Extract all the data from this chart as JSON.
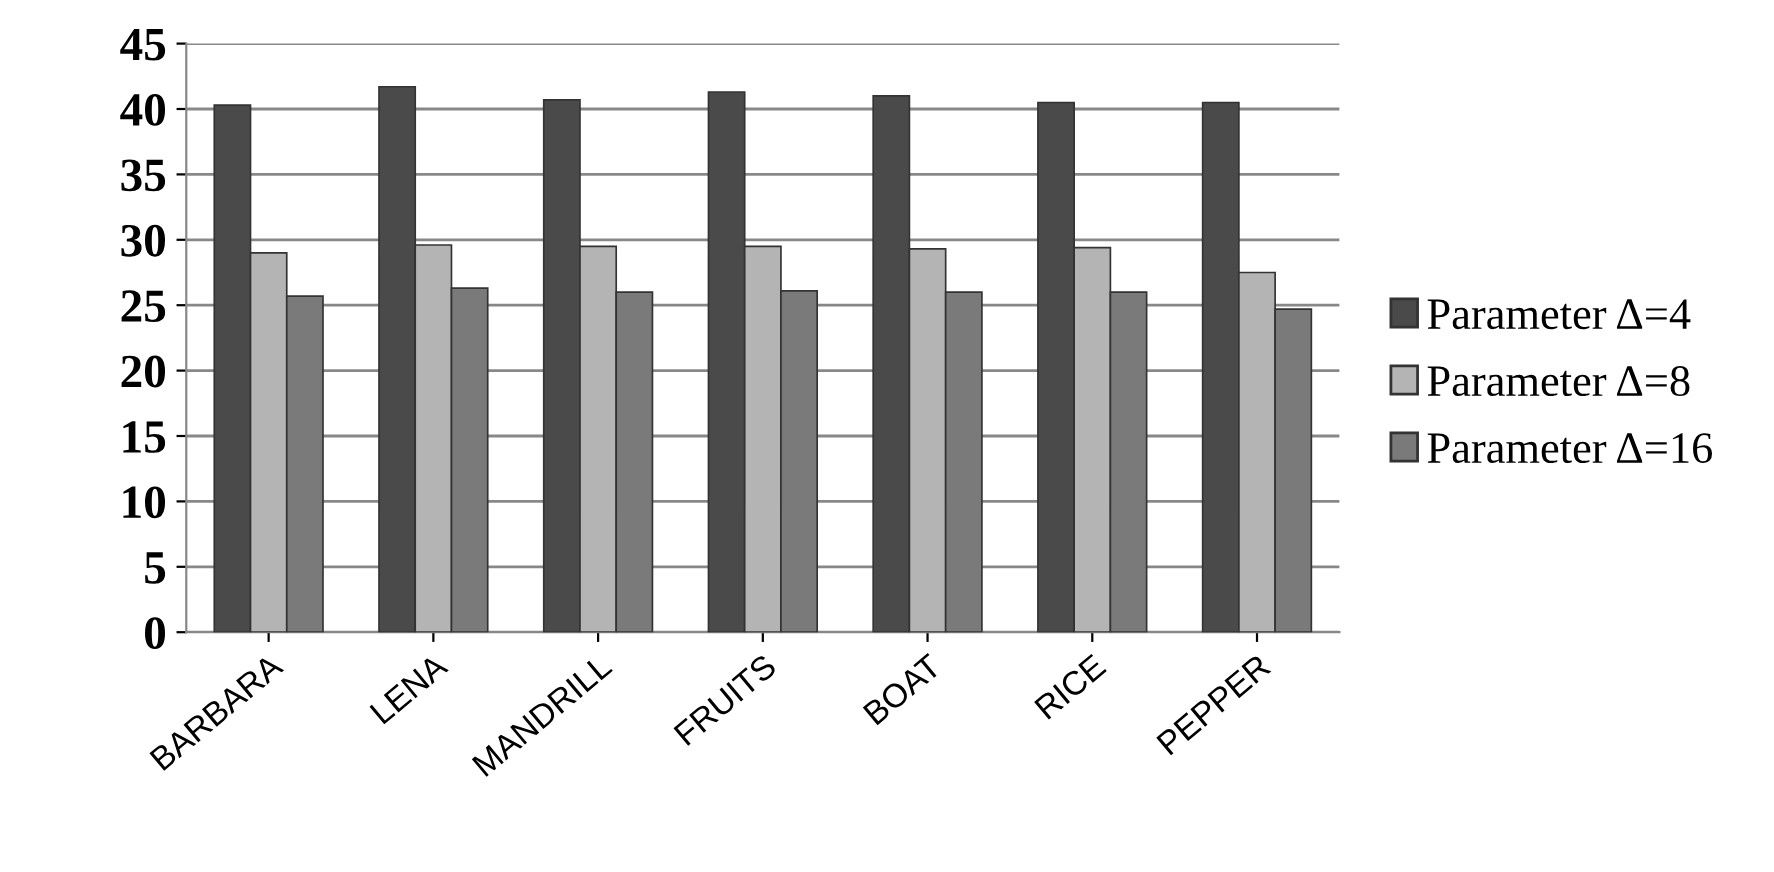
{
  "chart_data": {
    "type": "bar",
    "categories": [
      "BARBARA",
      "LENA",
      "MANDRILL",
      "FRUITS",
      "BOAT",
      "RICE",
      "PEPPER"
    ],
    "series": [
      {
        "name": "Parameter Δ=4",
        "color": "#4a4a4a",
        "values": [
          40.3,
          41.7,
          40.7,
          41.3,
          41.0,
          40.5,
          40.5
        ]
      },
      {
        "name": "Parameter Δ=8",
        "color": "#b4b4b4",
        "values": [
          29.0,
          29.6,
          29.5,
          29.5,
          29.3,
          29.4,
          27.5
        ]
      },
      {
        "name": "Parameter Δ=16",
        "color": "#7a7a7a",
        "values": [
          25.7,
          26.3,
          26.0,
          26.1,
          26.0,
          26.0,
          24.7
        ]
      }
    ],
    "ylim": [
      0,
      45
    ],
    "yticks": [
      0,
      5,
      10,
      15,
      20,
      25,
      30,
      35,
      40,
      45
    ],
    "grid": "y",
    "legend": "right"
  }
}
